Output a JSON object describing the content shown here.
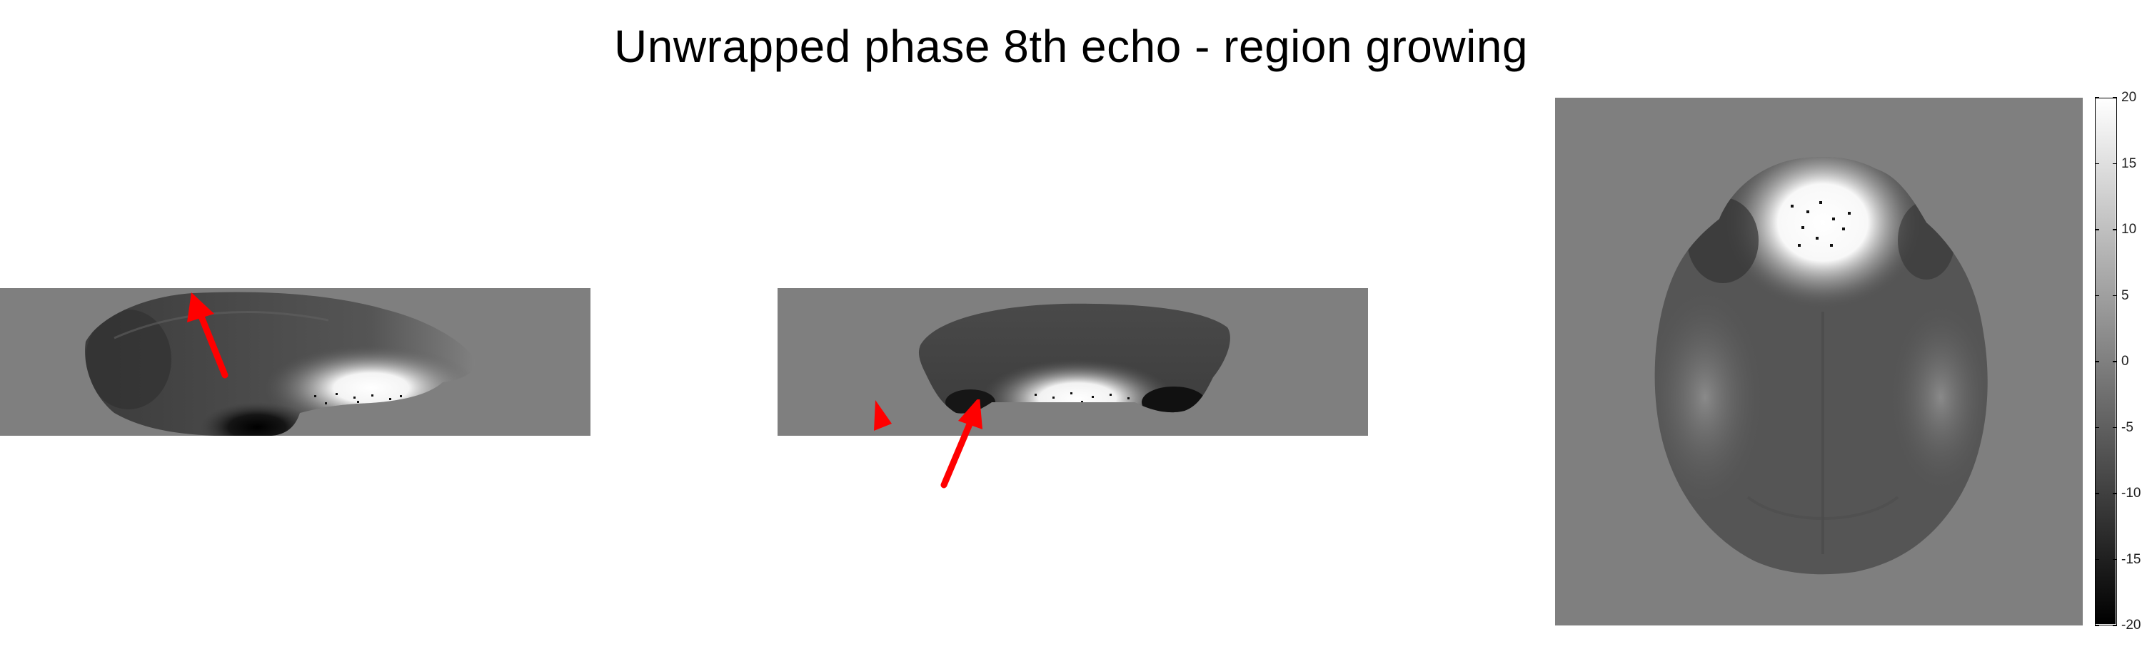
{
  "title": "Unwrapped phase 8th echo - region growing",
  "colorbar": {
    "min": -20,
    "max": 20,
    "ticks": [
      "20",
      "15",
      "10",
      "5",
      "0",
      "-5",
      "-10",
      "-15",
      "-20"
    ],
    "colormap": "gray"
  },
  "colors": {
    "background": "#7f7f7f",
    "arrow": "#ff0000"
  },
  "panels": [
    {
      "view": "sagittal",
      "annotation": "red-arrow"
    },
    {
      "view": "coronal",
      "annotation": "red-arrow"
    },
    {
      "view": "axial",
      "annotation": "none"
    }
  ]
}
